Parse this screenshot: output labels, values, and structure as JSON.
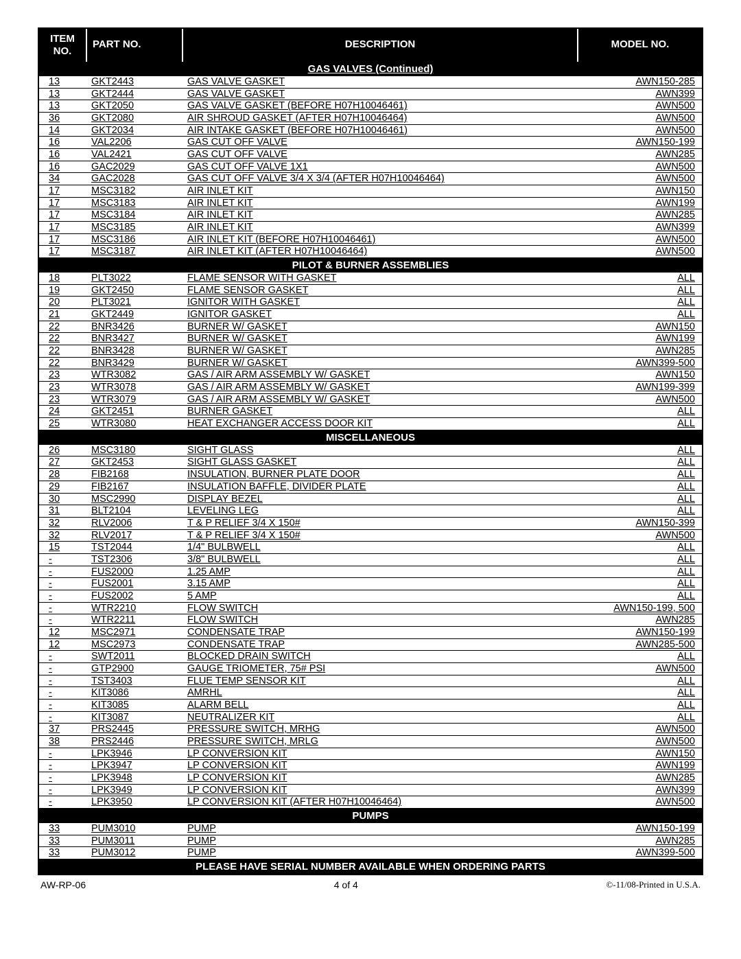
{
  "headers": {
    "item": "ITEM NO.",
    "part": "PART NO.",
    "description": "DESCRIPTION",
    "model": "MODEL NO."
  },
  "footer": {
    "doc": "AW-RP-06",
    "page": "4 of 4",
    "copyright": "©-11/08-Printed in U.S.A."
  },
  "sections": [
    {
      "title": "GAS VALVES (Continued)",
      "underline": true,
      "rows": [
        {
          "item": "13",
          "part": "GKT2443",
          "desc": "GAS VALVE GASKET",
          "model": "AWN150-285"
        },
        {
          "item": "13",
          "part": "GKT2444",
          "desc": "GAS VALVE GASKET",
          "model": "AWN399"
        },
        {
          "item": "13",
          "part": "GKT2050",
          "desc": "GAS VALVE GASKET (BEFORE H07H10046461)",
          "model": "AWN500"
        },
        {
          "item": "36",
          "part": "GKT2080",
          "desc": "AIR SHROUD GASKET (AFTER H07H10046464)",
          "model": "AWN500"
        },
        {
          "item": "14",
          "part": "GKT2034",
          "desc": "AIR INTAKE GASKET (BEFORE H07H10046461)",
          "model": "AWN500"
        },
        {
          "item": "16",
          "part": "VAL2206",
          "desc": "GAS CUT OFF VALVE",
          "model": "AWN150-199"
        },
        {
          "item": "16",
          "part": "VAL2421",
          "desc": "GAS CUT OFF VALVE",
          "model": "AWN285"
        },
        {
          "item": "16",
          "part": "GAC2029",
          "desc": "GAS CUT OFF VALVE 1X1",
          "model": "AWN500"
        },
        {
          "item": "34",
          "part": "GAC2028",
          "desc": "GAS CUT OFF VALVE 3/4 X 3/4 (AFTER H07H10046464)",
          "model": "AWN500"
        },
        {
          "item": "17",
          "part": "MSC3182",
          "desc": "AIR INLET KIT",
          "model": "AWN150"
        },
        {
          "item": "17",
          "part": "MSC3183",
          "desc": "AIR INLET KIT",
          "model": "AWN199"
        },
        {
          "item": "17",
          "part": "MSC3184",
          "desc": "AIR INLET KIT",
          "model": "AWN285"
        },
        {
          "item": "17",
          "part": "MSC3185",
          "desc": "AIR INLET KIT",
          "model": "AWN399"
        },
        {
          "item": "17",
          "part": "MSC3186",
          "desc": "AIR INLET KIT (BEFORE H07H10046461)",
          "model": "AWN500"
        },
        {
          "item": "17",
          "part": "MSC3187",
          "desc": "AIR INLET KIT (AFTER H07H10046464)",
          "model": "AWN500"
        }
      ]
    },
    {
      "title": "PILOT & BURNER ASSEMBLIES",
      "underline": false,
      "rows": [
        {
          "item": "18",
          "part": "PLT3022",
          "desc": "FLAME SENSOR WITH GASKET",
          "model": "ALL"
        },
        {
          "item": "19",
          "part": "GKT2450",
          "desc": "FLAME SENSOR GASKET",
          "model": "ALL"
        },
        {
          "item": "20",
          "part": "PLT3021",
          "desc": "IGNITOR WITH GASKET",
          "model": "ALL"
        },
        {
          "item": "21",
          "part": "GKT2449",
          "desc": "IGNITOR GASKET",
          "model": "ALL"
        },
        {
          "item": "22",
          "part": "BNR3426",
          "desc": "BURNER W/ GASKET",
          "model": "AWN150"
        },
        {
          "item": "22",
          "part": "BNR3427",
          "desc": "BURNER W/ GASKET",
          "model": "AWN199"
        },
        {
          "item": "22",
          "part": "BNR3428",
          "desc": "BURNER W/ GASKET",
          "model": "AWN285"
        },
        {
          "item": "22",
          "part": "BNR3429",
          "desc": "BURNER W/ GASKET",
          "model": "AWN399-500"
        },
        {
          "item": "23",
          "part": "WTR3082",
          "desc": "GAS / AIR ARM ASSEMBLY W/ GASKET",
          "model": "AWN150"
        },
        {
          "item": "23",
          "part": "WTR3078",
          "desc": "GAS / AIR ARM ASSEMBLY W/ GASKET",
          "model": "AWN199-399"
        },
        {
          "item": "23",
          "part": "WTR3079",
          "desc": "GAS / AIR ARM ASSEMBLY W/ GASKET",
          "model": "AWN500"
        },
        {
          "item": "24",
          "part": "GKT2451",
          "desc": "BURNER GASKET",
          "model": "ALL"
        },
        {
          "item": "25",
          "part": "WTR3080",
          "desc": "HEAT EXCHANGER ACCESS DOOR KIT",
          "model": "ALL"
        }
      ]
    },
    {
      "title": "MISCELLANEOUS",
      "underline": false,
      "rows": [
        {
          "item": "26",
          "part": "MSC3180",
          "desc": "SIGHT GLASS",
          "model": "ALL"
        },
        {
          "item": "27",
          "part": "GKT2453",
          "desc": "SIGHT GLASS GASKET",
          "model": "ALL"
        },
        {
          "item": "28",
          "part": "FIB2168",
          "desc": "INSULATION, BURNER PLATE DOOR",
          "model": "ALL"
        },
        {
          "item": "29",
          "part": "FIB2167",
          "desc": "INSULATION BAFFLE, DIVIDER PLATE",
          "model": "ALL"
        },
        {
          "item": "30",
          "part": "MSC2990",
          "desc": "DISPLAY BEZEL",
          "model": "ALL"
        },
        {
          "item": "31",
          "part": "BLT2104",
          "desc": "LEVELING LEG",
          "model": "ALL"
        },
        {
          "item": "32",
          "part": "RLV2006",
          "desc": "T & P RELIEF 3/4 X 150#",
          "model": "AWN150-399"
        },
        {
          "item": "32",
          "part": "RLV2017",
          "desc": "T & P RELIEF 3/4 X 150#",
          "model": "AWN500"
        },
        {
          "item": "15",
          "part": "TST2044",
          "desc": "1/4\" BULBWELL",
          "model": "ALL"
        },
        {
          "item": "-",
          "part": "TST2306",
          "desc": "3/8\" BULBWELL",
          "model": "ALL"
        },
        {
          "item": "-",
          "part": "FUS2000",
          "desc": "1.25 AMP",
          "model": "ALL"
        },
        {
          "item": "-",
          "part": "FUS2001",
          "desc": "3.15 AMP",
          "model": "ALL"
        },
        {
          "item": "-",
          "part": "FUS2002",
          "desc": "5 AMP",
          "model": "ALL"
        },
        {
          "item": "-",
          "part": "WTR2210",
          "desc": "FLOW SWITCH",
          "model": "AWN150-199, 500"
        },
        {
          "item": "-",
          "part": "WTR2211",
          "desc": "FLOW SWITCH",
          "model": "AWN285"
        },
        {
          "item": "12",
          "part": "MSC2971",
          "desc": "CONDENSATE TRAP",
          "model": "AWN150-199"
        },
        {
          "item": "12",
          "part": "MSC2973",
          "desc": "CONDENSATE TRAP",
          "model": "AWN285-500"
        },
        {
          "item": "-",
          "part": "SWT2011",
          "desc": "BLOCKED DRAIN SWITCH",
          "model": "ALL"
        },
        {
          "item": "-",
          "part": "GTP2900",
          "desc": "GAUGE TRIOMETER, 75# PSI",
          "model": "AWN500"
        },
        {
          "item": "-",
          "part": "TST3403",
          "desc": "FLUE TEMP SENSOR KIT",
          "model": "ALL"
        },
        {
          "item": "-",
          "part": "KIT3086",
          "desc": "AMRHL",
          "model": "ALL"
        },
        {
          "item": "-",
          "part": "KIT3085",
          "desc": "ALARM BELL",
          "model": "ALL"
        },
        {
          "item": "-",
          "part": "KIT3087",
          "desc": "NEUTRALIZER KIT",
          "model": "ALL"
        },
        {
          "item": "37",
          "part": "PRS2445",
          "desc": "PRESSURE SWITCH, MRHG",
          "model": "AWN500"
        },
        {
          "item": "38",
          "part": "PRS2446",
          "desc": "PRESSURE SWITCH, MRLG",
          "model": "AWN500"
        },
        {
          "item": "-",
          "part": "LPK3946",
          "desc": "LP CONVERSION KIT",
          "model": "AWN150"
        },
        {
          "item": "-",
          "part": "LPK3947",
          "desc": "LP CONVERSION KIT",
          "model": "AWN199"
        },
        {
          "item": "-",
          "part": "LPK3948",
          "desc": "LP CONVERSION KIT",
          "model": "AWN285"
        },
        {
          "item": "-",
          "part": "LPK3949",
          "desc": "LP CONVERSION KIT",
          "model": "AWN399"
        },
        {
          "item": "-",
          "part": "LPK3950",
          "desc": "LP CONVERSION KIT (AFTER H07H10046464)",
          "model": "AWN500"
        }
      ]
    },
    {
      "title": "PUMPS",
      "underline": false,
      "rows": [
        {
          "item": "33",
          "part": "PUM3010",
          "desc": "PUMP",
          "model": "AWN150-199"
        },
        {
          "item": "33",
          "part": "PUM3011",
          "desc": "PUMP",
          "model": "AWN285"
        },
        {
          "item": "33",
          "part": "PUM3012",
          "desc": "PUMP",
          "model": "AWN399-500"
        }
      ]
    }
  ],
  "bottom_banner": "PLEASE HAVE SERIAL NUMBER AVAILABLE WHEN ORDERING PARTS"
}
